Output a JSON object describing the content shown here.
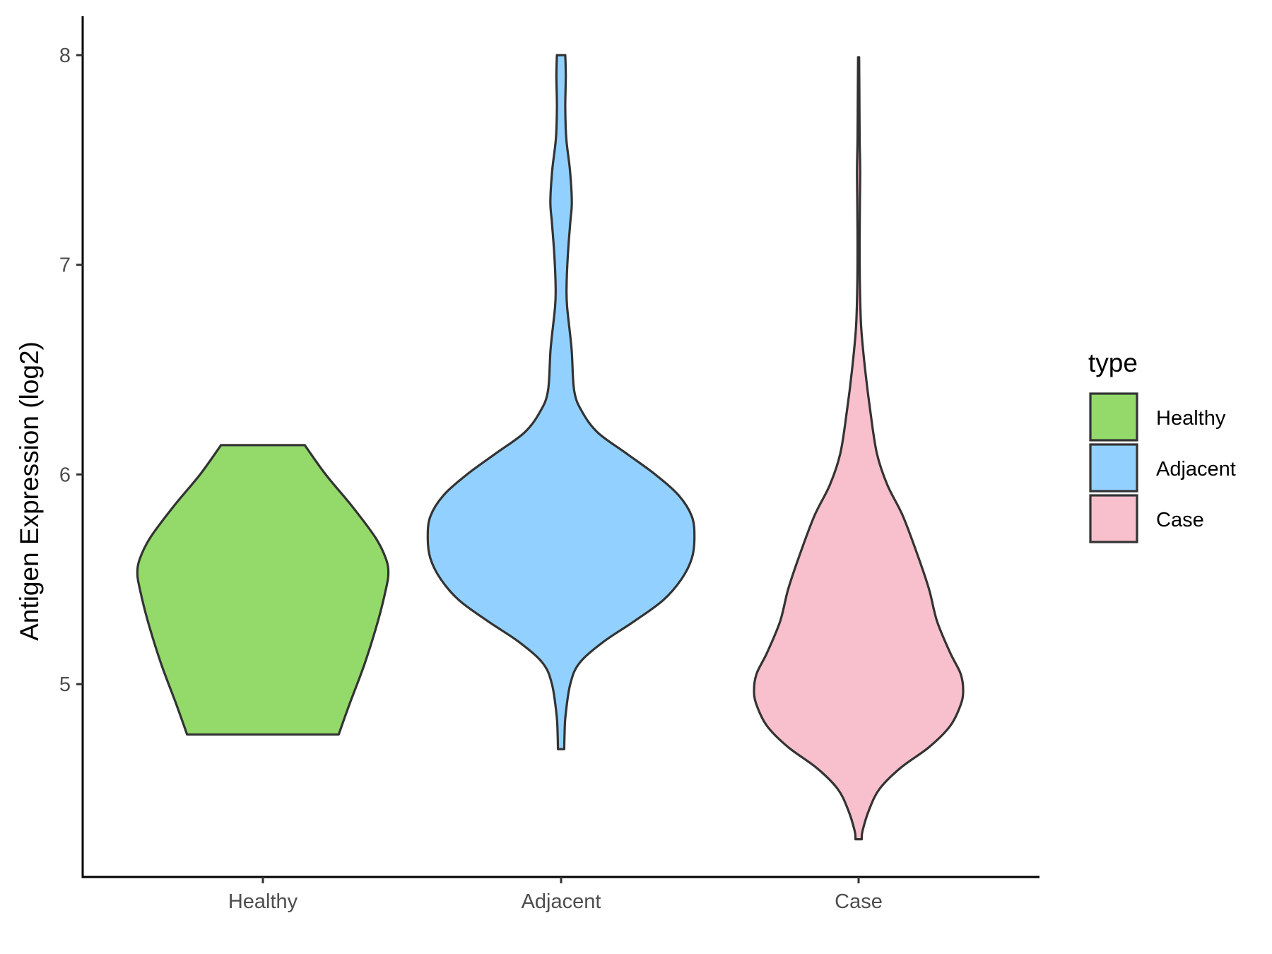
{
  "chart_data": {
    "type": "violin",
    "title": "",
    "xlabel": "",
    "ylabel": "Antigen Expression (log2)",
    "ylim": [
      4.1,
      8.2
    ],
    "yticks": [
      5,
      6,
      7,
      8
    ],
    "categories": [
      "Healthy",
      "Adjacent",
      "Case"
    ],
    "legend": {
      "title": "type",
      "placement": "right",
      "entries": [
        "Healthy",
        "Adjacent",
        "Case"
      ]
    },
    "grid": false,
    "series": [
      {
        "category": "Healthy",
        "color": "#93DA6A",
        "density": [
          [
            4.76,
            0.29
          ],
          [
            4.9,
            0.33
          ],
          [
            5.1,
            0.39
          ],
          [
            5.3,
            0.44
          ],
          [
            5.45,
            0.47
          ],
          [
            5.53,
            0.48
          ],
          [
            5.6,
            0.47
          ],
          [
            5.7,
            0.43
          ],
          [
            5.85,
            0.34
          ],
          [
            6.0,
            0.24
          ],
          [
            6.14,
            0.16
          ]
        ]
      },
      {
        "category": "Adjacent",
        "color": "#92D1FF",
        "density": [
          [
            4.69,
            0.012
          ],
          [
            4.75,
            0.013
          ],
          [
            4.85,
            0.017
          ],
          [
            5.0,
            0.035
          ],
          [
            5.1,
            0.07
          ],
          [
            5.2,
            0.16
          ],
          [
            5.3,
            0.28
          ],
          [
            5.4,
            0.39
          ],
          [
            5.5,
            0.46
          ],
          [
            5.6,
            0.5
          ],
          [
            5.7,
            0.51
          ],
          [
            5.8,
            0.5
          ],
          [
            5.9,
            0.45
          ],
          [
            6.0,
            0.36
          ],
          [
            6.1,
            0.25
          ],
          [
            6.2,
            0.14
          ],
          [
            6.3,
            0.08
          ],
          [
            6.4,
            0.05
          ],
          [
            6.6,
            0.04
          ],
          [
            6.8,
            0.023
          ],
          [
            6.9,
            0.021
          ],
          [
            7.05,
            0.026
          ],
          [
            7.2,
            0.035
          ],
          [
            7.3,
            0.041
          ],
          [
            7.45,
            0.034
          ],
          [
            7.6,
            0.02
          ],
          [
            7.75,
            0.016
          ],
          [
            7.9,
            0.018
          ],
          [
            8.0,
            0.016
          ]
        ]
      },
      {
        "category": "Case",
        "color": "#F8C0CC",
        "density": [
          [
            4.26,
            0.012
          ],
          [
            4.3,
            0.015
          ],
          [
            4.4,
            0.04
          ],
          [
            4.5,
            0.08
          ],
          [
            4.6,
            0.16
          ],
          [
            4.7,
            0.27
          ],
          [
            4.8,
            0.35
          ],
          [
            4.9,
            0.39
          ],
          [
            4.97,
            0.4
          ],
          [
            5.05,
            0.39
          ],
          [
            5.15,
            0.35
          ],
          [
            5.3,
            0.3
          ],
          [
            5.45,
            0.27
          ],
          [
            5.6,
            0.23
          ],
          [
            5.8,
            0.17
          ],
          [
            5.95,
            0.11
          ],
          [
            6.1,
            0.07
          ],
          [
            6.3,
            0.045
          ],
          [
            6.5,
            0.025
          ],
          [
            6.7,
            0.01
          ],
          [
            6.9,
            0.005
          ],
          [
            7.1,
            0.004
          ],
          [
            7.3,
            0.005
          ],
          [
            7.45,
            0.006
          ],
          [
            7.6,
            0.004
          ],
          [
            7.8,
            0.003
          ],
          [
            7.99,
            0.002
          ]
        ]
      }
    ]
  }
}
